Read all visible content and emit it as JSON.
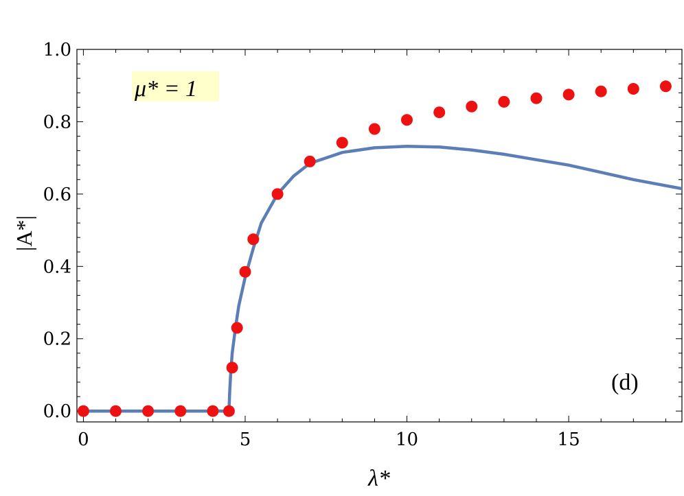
{
  "chart_data": {
    "type": "line",
    "xlabel": "λ*",
    "ylabel": "|A*|",
    "xlim": [
      -0.2,
      18.5
    ],
    "ylim": [
      -0.03,
      1.0
    ],
    "x_ticks": [
      0,
      5,
      10,
      15
    ],
    "y_ticks": [
      0.0,
      0.2,
      0.4,
      0.6,
      0.8,
      1.0
    ],
    "y_tick_labels": [
      "0.0",
      "0.2",
      "0.4",
      "0.6",
      "0.8",
      "1.0"
    ],
    "grid": false,
    "annotations": [
      {
        "text": "μ* = 1",
        "position": "top-left",
        "background": "#ffffcc"
      },
      {
        "text": "(d)",
        "position": "bottom-right"
      }
    ],
    "series": [
      {
        "kind": "line",
        "color": "#5a7eb5",
        "x": [
          0,
          4.5,
          4.52,
          4.55,
          4.6,
          4.7,
          4.8,
          5.0,
          5.25,
          5.5,
          6.0,
          6.5,
          7.0,
          8.0,
          9.0,
          10.0,
          11.0,
          12.0,
          13.0,
          14.0,
          15.0,
          16.0,
          17.0,
          18.5
        ],
        "y": [
          0.0,
          0.0,
          0.05,
          0.1,
          0.16,
          0.23,
          0.29,
          0.37,
          0.45,
          0.52,
          0.6,
          0.65,
          0.685,
          0.715,
          0.728,
          0.732,
          0.73,
          0.722,
          0.71,
          0.695,
          0.68,
          0.66,
          0.64,
          0.615
        ]
      },
      {
        "kind": "scatter",
        "color": "#ee1111",
        "x": [
          0,
          1,
          2,
          3,
          4,
          4.5,
          4.6,
          4.75,
          5.0,
          5.25,
          6.0,
          7.0,
          8.0,
          9.0,
          10.0,
          11.0,
          12.0,
          13.0,
          14.0,
          15.0,
          16.0,
          17.0,
          18.0
        ],
        "y": [
          0.0,
          0.0,
          0.0,
          0.0,
          0.0,
          0.0,
          0.12,
          0.23,
          0.385,
          0.475,
          0.6,
          0.69,
          0.742,
          0.78,
          0.805,
          0.826,
          0.842,
          0.855,
          0.865,
          0.875,
          0.884,
          0.891,
          0.898
        ]
      }
    ]
  }
}
